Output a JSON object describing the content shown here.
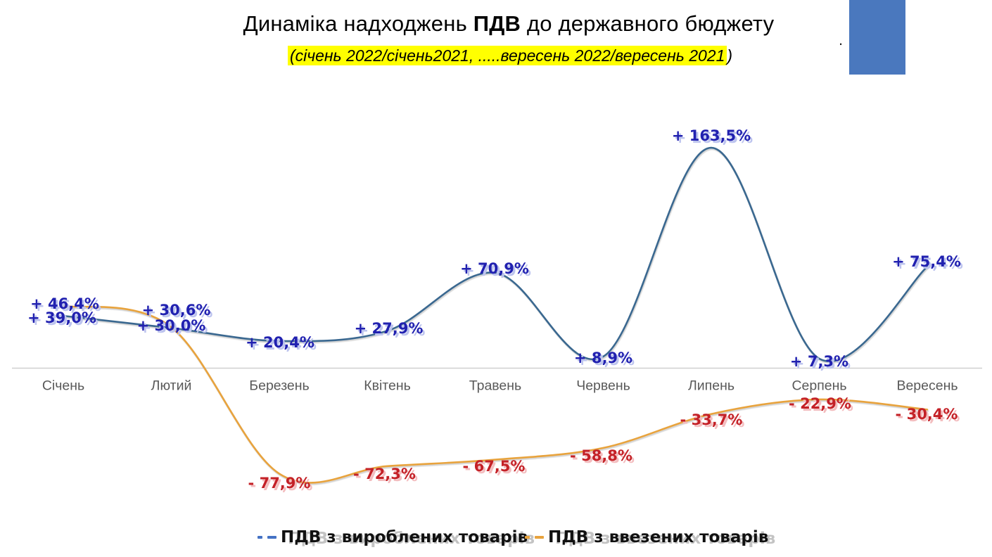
{
  "header": {
    "title_prefix": "Динаміка надходжень ",
    "title_bold": "ПДВ",
    "title_suffix": " до державного бюджету",
    "subtitle_highlight": "(січень 2022/січень2021, .....вересень 2022/вересень 2021",
    "subtitle_tail": ")",
    "stray_dot": "."
  },
  "colors": {
    "series_produced_line": "#3A6890",
    "series_imported_line": "#E8A33D",
    "positive_label": "#2121B0",
    "negative_label": "#C42127",
    "axis_line": "#D0D0D0",
    "axis_text": "#595959",
    "subtitle_highlight_bg": "#FFFF00",
    "corner_rectangle": "#4A78BE",
    "legend_dash_blue": "#4472C4",
    "legend_dash_orange": "#E8A33D"
  },
  "chart_data": {
    "type": "line",
    "title": "Динаміка надходжень ПДВ до державного бюджету",
    "subtitle": "(січень 2022/січень2021, .....вересень 2022/вересень 2021)",
    "categories": [
      "Січень",
      "Лютий",
      "Березень",
      "Квітень",
      "Травень",
      "Червень",
      "Липень",
      "Серпень",
      "Вересень"
    ],
    "series": [
      {
        "name": "ПДВ з вироблених товарів",
        "color": "#3A6890",
        "values": [
          39.0,
          30.0,
          20.4,
          27.9,
          70.9,
          8.9,
          163.5,
          7.3,
          75.4
        ],
        "point_labels": [
          "+ 39,0%",
          "+ 30,0%",
          "+ 20,4%",
          "+ 27,9%",
          "+ 70,9%",
          "+ 8,9%",
          "+ 163,5%",
          "+ 7,3%",
          "+ 75,4%"
        ]
      },
      {
        "name": "ПДВ з ввезених товарів",
        "color": "#E8A33D",
        "values": [
          46.4,
          30.6,
          -77.9,
          -72.3,
          -67.5,
          -58.8,
          -33.7,
          -22.9,
          -30.4
        ],
        "point_labels": [
          "+ 46,4%",
          "+ 30,6%",
          "- 77,9%",
          "- 72,3%",
          "- 67,5%",
          "- 58,8%",
          "- 33,7%",
          "- 22,9%",
          "- 30,4%"
        ]
      }
    ],
    "label_colors": {
      "positive": "#2121B0",
      "negative": "#C42127"
    },
    "smooth": true,
    "gridlines": false,
    "y_axis_visible": false,
    "baseline": 0,
    "ylim": [
      -110,
      185
    ],
    "legend_position": "bottom"
  }
}
